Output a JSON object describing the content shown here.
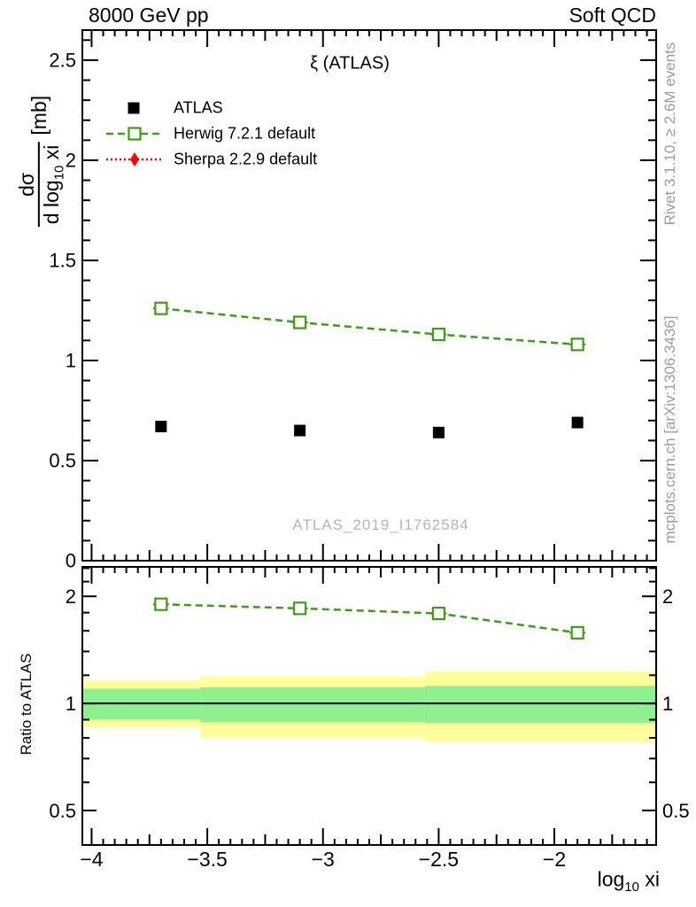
{
  "chart_data": {
    "type": "line",
    "header": {
      "left": "8000 GeV pp",
      "right": "Soft QCD"
    },
    "title": "ξ (ATLAS)",
    "watermark": "ATLAS_2019_I1762584",
    "side_notes": {
      "top": "Rivet 3.1.10, ≥ 2.6M events",
      "bottom": "mcplots.cern.ch [arXiv:1306.3436]"
    },
    "labels": {
      "xlabel_pre": "log",
      "xlabel_sub": "10",
      "xlabel_post": "xi",
      "ylabel_num": "dσ",
      "ylabel_den_pre": "d log",
      "ylabel_den_sub": "10",
      "ylabel_den_post": "xi",
      "ylabel_units": "[mb]",
      "ratio_ylabel": "Ratio to ATLAS"
    },
    "x": [
      -3.7,
      -3.1,
      -2.5,
      -1.9
    ],
    "series": [
      {
        "name": "ATLAS",
        "marker": "filled-square",
        "color": "#000000",
        "line": "none",
        "values": [
          0.67,
          0.65,
          0.64,
          0.69
        ]
      },
      {
        "name": "Herwig 7.2.1 default",
        "marker": "open-square",
        "color": "#3aa010",
        "line": "dashed",
        "values": [
          1.26,
          1.19,
          1.13,
          1.08
        ]
      },
      {
        "name": "Sherpa 2.2.9 default",
        "marker": "filled-diamond",
        "color": "#ff0000",
        "line": "dotted",
        "values": []
      }
    ],
    "ratio": {
      "herwig_values": [
        1.9,
        1.85,
        1.79,
        1.58
      ],
      "bands": [
        {
          "x0": -4.04,
          "x1": -3.53,
          "yellow": [
            0.855,
            1.16
          ],
          "green": [
            0.9,
            1.1
          ]
        },
        {
          "x0": -3.53,
          "x1": -2.56,
          "yellow": [
            0.8,
            1.19
          ],
          "green": [
            0.885,
            1.11
          ]
        },
        {
          "x0": -2.56,
          "x1": -1.56,
          "yellow": [
            0.78,
            1.23
          ],
          "green": [
            0.88,
            1.12
          ]
        }
      ],
      "band_colors": {
        "outer": "#ffff9b",
        "inner": "#8ef08e"
      }
    },
    "axes": {
      "x": {
        "lim": [
          -4.04,
          -1.56
        ],
        "major": [
          -4,
          -3.5,
          -3,
          -2.5,
          -2
        ],
        "minor_step": 0.05
      },
      "y_main": {
        "lim": [
          0,
          2.65
        ],
        "major": [
          0,
          0.5,
          1,
          1.5,
          2,
          2.5
        ],
        "minor_step": 0.1
      },
      "y_ratio": {
        "scale": "log",
        "lim": [
          0.4,
          2.42
        ],
        "major": [
          0.5,
          1,
          2
        ],
        "minor": [
          0.4,
          0.6,
          0.7,
          0.8,
          0.9,
          1.2,
          1.4,
          1.6,
          1.8,
          2.2,
          2.4
        ]
      }
    }
  }
}
